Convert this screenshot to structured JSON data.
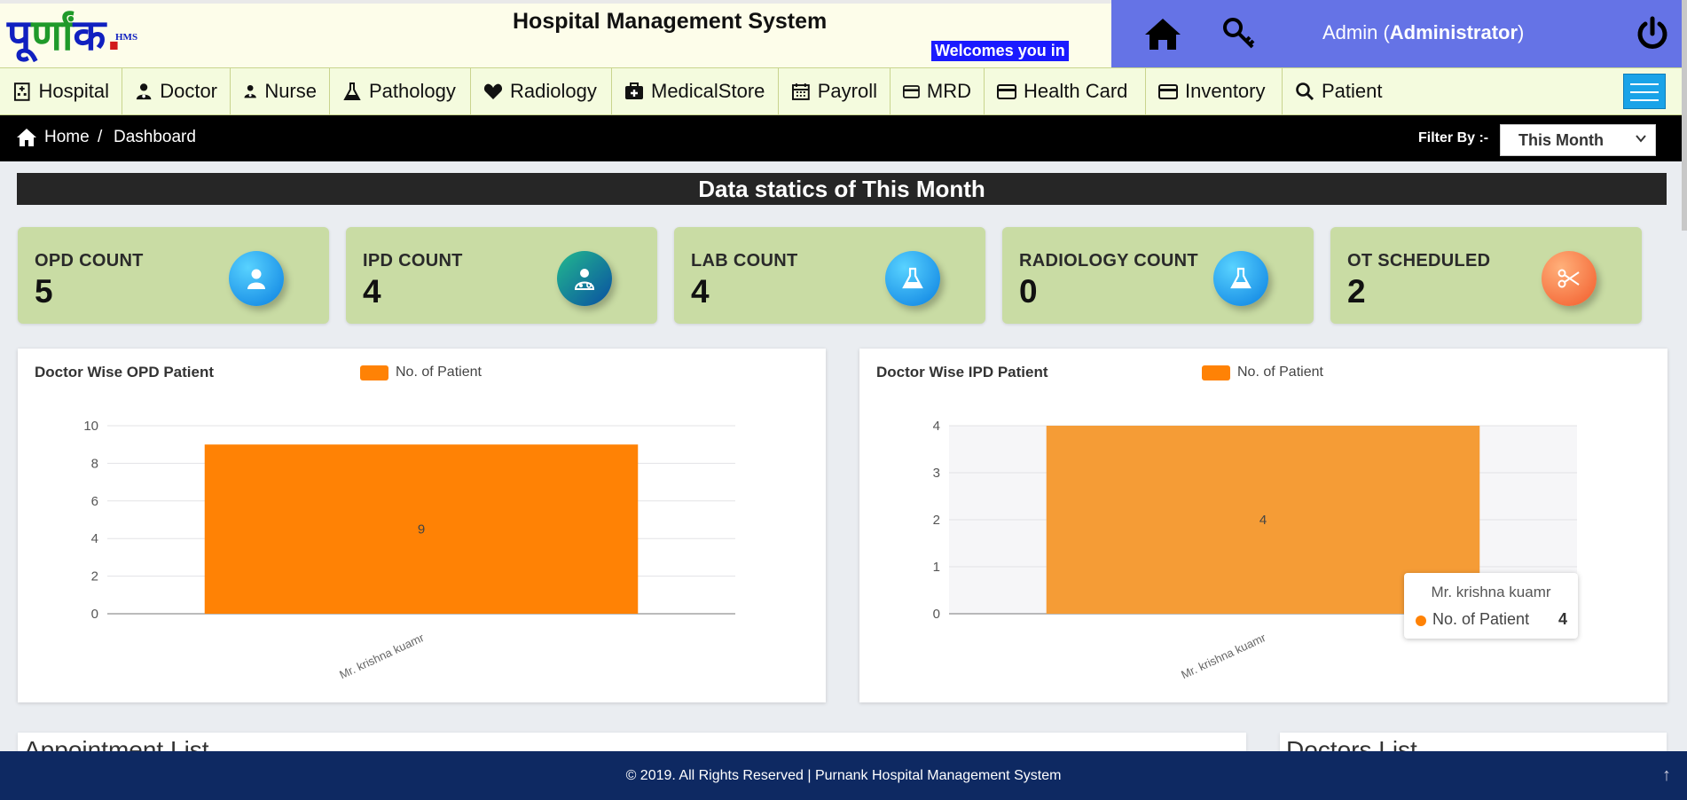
{
  "header": {
    "logo_text": "पूर्णांक.",
    "logo_sup": "HMS",
    "title": "Hospital Management System",
    "welcome": "Welcomes you in",
    "user_name": "Admin (",
    "user_role": "Administrator",
    "user_close": ")",
    "colors": {
      "bar": "#6573e6",
      "welcome_bg": "#1a1aff"
    }
  },
  "nav": {
    "items": [
      {
        "label": "Hospital",
        "icon": "hospital-icon"
      },
      {
        "label": "Doctor",
        "icon": "doctor-icon"
      },
      {
        "label": "Nurse",
        "icon": "nurse-icon"
      },
      {
        "label": "Pathology",
        "icon": "flask-icon"
      },
      {
        "label": "Radiology",
        "icon": "heart-icon"
      },
      {
        "label": "MedicalStore",
        "icon": "medkit-icon"
      },
      {
        "label": "Payroll",
        "icon": "calendar-icon"
      },
      {
        "label": "MRD",
        "icon": "card-icon"
      },
      {
        "label": "Health Card",
        "icon": "card-icon"
      },
      {
        "label": "Inventory",
        "icon": "card-icon"
      },
      {
        "label": "Patient",
        "icon": "search-icon"
      }
    ]
  },
  "breadcrumb": {
    "home": "Home",
    "separator": "/",
    "current": "Dashboard",
    "filter_label": "Filter By :-",
    "filter_value": "This Month"
  },
  "stats": {
    "title": "Data statics of This Month",
    "cards": [
      {
        "label": "OPD COUNT",
        "value": "5",
        "icon": "user-icon"
      },
      {
        "label": "IPD COUNT",
        "value": "4",
        "icon": "doctor-icon"
      },
      {
        "label": "LAB COUNT",
        "value": "4",
        "icon": "flask-icon"
      },
      {
        "label": "RADIOLOGY COUNT",
        "value": "0",
        "icon": "flask-icon"
      },
      {
        "label": "OT SCHEDULED",
        "value": "2",
        "icon": "scissors-icon"
      }
    ]
  },
  "chart_data": [
    {
      "type": "bar",
      "title": "Doctor Wise OPD Patient",
      "categories": [
        "Mr. krishna kuamr"
      ],
      "series": [
        {
          "name": "No. of Patient",
          "values": [
            9
          ],
          "color": "#ff8205"
        }
      ],
      "ylim": [
        0,
        10
      ],
      "yticks": [
        "0",
        "2",
        "4",
        "6",
        "8",
        "10"
      ],
      "data_labels": [
        "9"
      ],
      "legend": "top",
      "grid": true
    },
    {
      "type": "bar",
      "title": "Doctor Wise IPD Patient",
      "categories": [
        "Mr. krishna kuamr"
      ],
      "series": [
        {
          "name": "No. of Patient",
          "values": [
            4
          ],
          "color": "#f59c36"
        }
      ],
      "ylim": [
        0,
        4
      ],
      "yticks": [
        "0",
        "1",
        "2",
        "3",
        "4"
      ],
      "data_labels": [
        "4"
      ],
      "legend": "top",
      "grid": true,
      "tooltip": {
        "title": "Mr. krishna kuamr",
        "series": "No. of Patient",
        "value": "4"
      }
    }
  ],
  "lists": {
    "appointment_title": "Appointment List",
    "doctors_title": "Doctors List"
  },
  "footer": {
    "text": "© 2019. All Rights Reserved | Purnank Hospital Management System",
    "to_top": "↑"
  }
}
